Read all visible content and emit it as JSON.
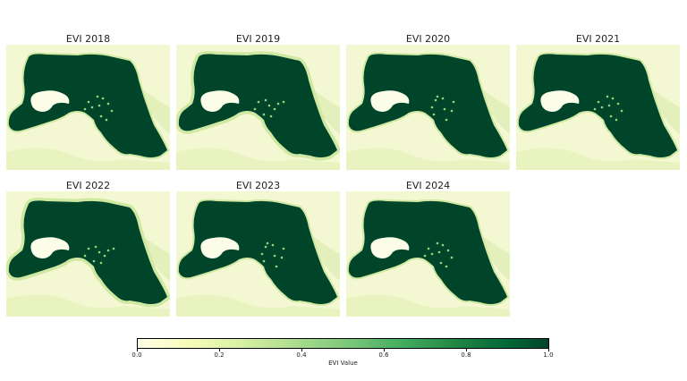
{
  "figure": {
    "panels": [
      {
        "title": "EVI 2018",
        "variant": 0
      },
      {
        "title": "EVI 2019",
        "variant": 1
      },
      {
        "title": "EVI 2020",
        "variant": 2
      },
      {
        "title": "EVI 2021",
        "variant": 0
      },
      {
        "title": "EVI 2022",
        "variant": 1
      },
      {
        "title": "EVI 2023",
        "variant": 2
      },
      {
        "title": "EVI 2024",
        "variant": 0
      }
    ],
    "colormap": {
      "name": "YlGn",
      "colors": [
        "#ffffe5",
        "#f7fcb9",
        "#d9f0a3",
        "#addd8e",
        "#78c679",
        "#41ab5d",
        "#238443",
        "#006837",
        "#004529"
      ]
    },
    "land_color": "#00452a",
    "background_color": "#f4f8d2"
  },
  "colorbar": {
    "label": "EVI Value",
    "ticks": [
      "0.0",
      "0.2",
      "0.4",
      "0.6",
      "0.8",
      "1.0"
    ],
    "range": [
      0,
      1
    ]
  }
}
